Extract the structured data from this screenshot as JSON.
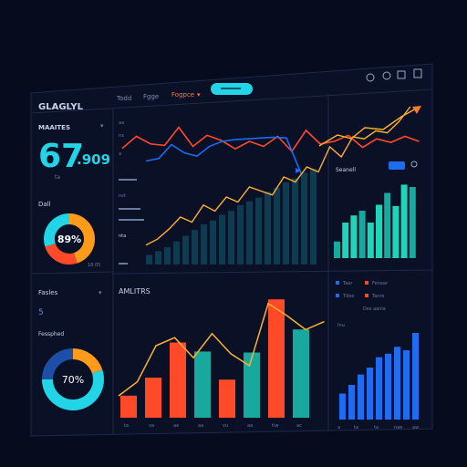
{
  "theme": {
    "bg": "#070b1e",
    "panel": "#0a1026",
    "border": "#1d2a4a",
    "cyan": "#21d4e6",
    "blue": "#1d6cf2",
    "orange": "#ff9b1a",
    "red": "#ff4a2a",
    "teal": "#17a89e",
    "text": "#c7d3ea",
    "muted": "#6b7ba0"
  },
  "header": {
    "title": "GLAGLYL",
    "nav": [
      "Todd",
      "Fgge",
      "Fogpce"
    ],
    "nav_active_caret": "▾",
    "pill_label": "",
    "icons": [
      "clock-icon",
      "refresh-icon",
      "calendar-icon"
    ]
  },
  "kpi": {
    "label": "MAAITES",
    "caret": "▾",
    "value": "67",
    "suffix": ".909",
    "sub": "ta"
  },
  "donut1": {
    "label": "Dall",
    "center": "89%",
    "note": "18.05",
    "slices": [
      {
        "name": "orange",
        "value": 45,
        "color": "#ff9b1a"
      },
      {
        "name": "red",
        "value": 25,
        "color": "#ff4a2a"
      },
      {
        "name": "cyan",
        "value": 30,
        "color": "#21d4e6"
      }
    ]
  },
  "lower_left": {
    "label": "Fasles",
    "caret": "▾",
    "value": "5",
    "sub_label": "Fessphed",
    "center": "70%",
    "slices": [
      {
        "name": "orange",
        "value": 20,
        "color": "#ff9b1a"
      },
      {
        "name": "cyan",
        "value": 55,
        "color": "#21d4e6"
      },
      {
        "name": "blue",
        "value": 25,
        "color": "#1d4fa8"
      }
    ]
  },
  "top_chart": {
    "legend_labels": [
      "aa",
      "nx",
      "a",
      "",
      "nst",
      "",
      "nta"
    ],
    "caption": "Seanell",
    "toggle_label": "",
    "red_line": [
      46,
      70,
      55,
      52,
      88,
      50,
      72,
      62,
      45,
      60,
      50,
      70,
      40,
      82,
      55,
      60,
      72,
      48,
      65,
      58,
      70,
      60
    ],
    "blue_line": [
      30,
      36,
      70,
      50,
      42,
      66,
      78,
      82,
      84,
      86,
      88,
      86
    ],
    "orange_line": [
      12,
      18,
      28,
      40,
      35,
      52,
      46,
      60,
      55,
      70,
      66,
      62,
      80,
      75,
      90,
      85,
      110,
      100,
      120,
      118,
      126,
      124,
      135,
      150
    ],
    "bars": [
      10,
      14,
      18,
      24,
      30,
      36,
      42,
      46,
      52,
      56,
      62,
      66,
      70,
      76,
      80,
      86,
      90,
      96,
      100
    ],
    "right_bars": [
      14,
      30,
      36,
      40,
      30,
      45,
      55,
      44,
      62,
      60
    ]
  },
  "bottom_chart": {
    "title": "AMLITRS",
    "bars": [
      {
        "value": 22,
        "color": "#ff4a2a"
      },
      {
        "value": 40,
        "color": "#ff4a2a"
      },
      {
        "value": 75,
        "color": "#ff4a2a"
      },
      {
        "value": 66,
        "color": "#17a89e"
      },
      {
        "value": 38,
        "color": "#ff4a2a"
      },
      {
        "value": 65,
        "color": "#17a89e"
      },
      {
        "value": 118,
        "color": "#ff4a2a"
      },
      {
        "value": 88,
        "color": "#17a89e"
      }
    ],
    "line": [
      20,
      34,
      70,
      78,
      58,
      82,
      62,
      50,
      112,
      100,
      86,
      94
    ],
    "x_ticks": [
      "ta",
      "va",
      "ae",
      "aa",
      "vu",
      "aa",
      "tiw",
      "ac"
    ]
  },
  "right_panel": {
    "legend": [
      {
        "marker": "#1d6cf2",
        "text": "Taar"
      },
      {
        "marker": "#ff4a2a",
        "text": "Fenear"
      },
      {
        "marker": "#1d6cf2",
        "text": "Tdoe"
      },
      {
        "marker": "#ff4a2a",
        "text": "Tanre"
      }
    ],
    "note": "Des aanla",
    "sub": "Inu",
    "bars": [
      30,
      40,
      52,
      60,
      72,
      76,
      84,
      80,
      100
    ],
    "x_ticks": [
      "a",
      "ta",
      "ta",
      "nae",
      "aw"
    ]
  }
}
